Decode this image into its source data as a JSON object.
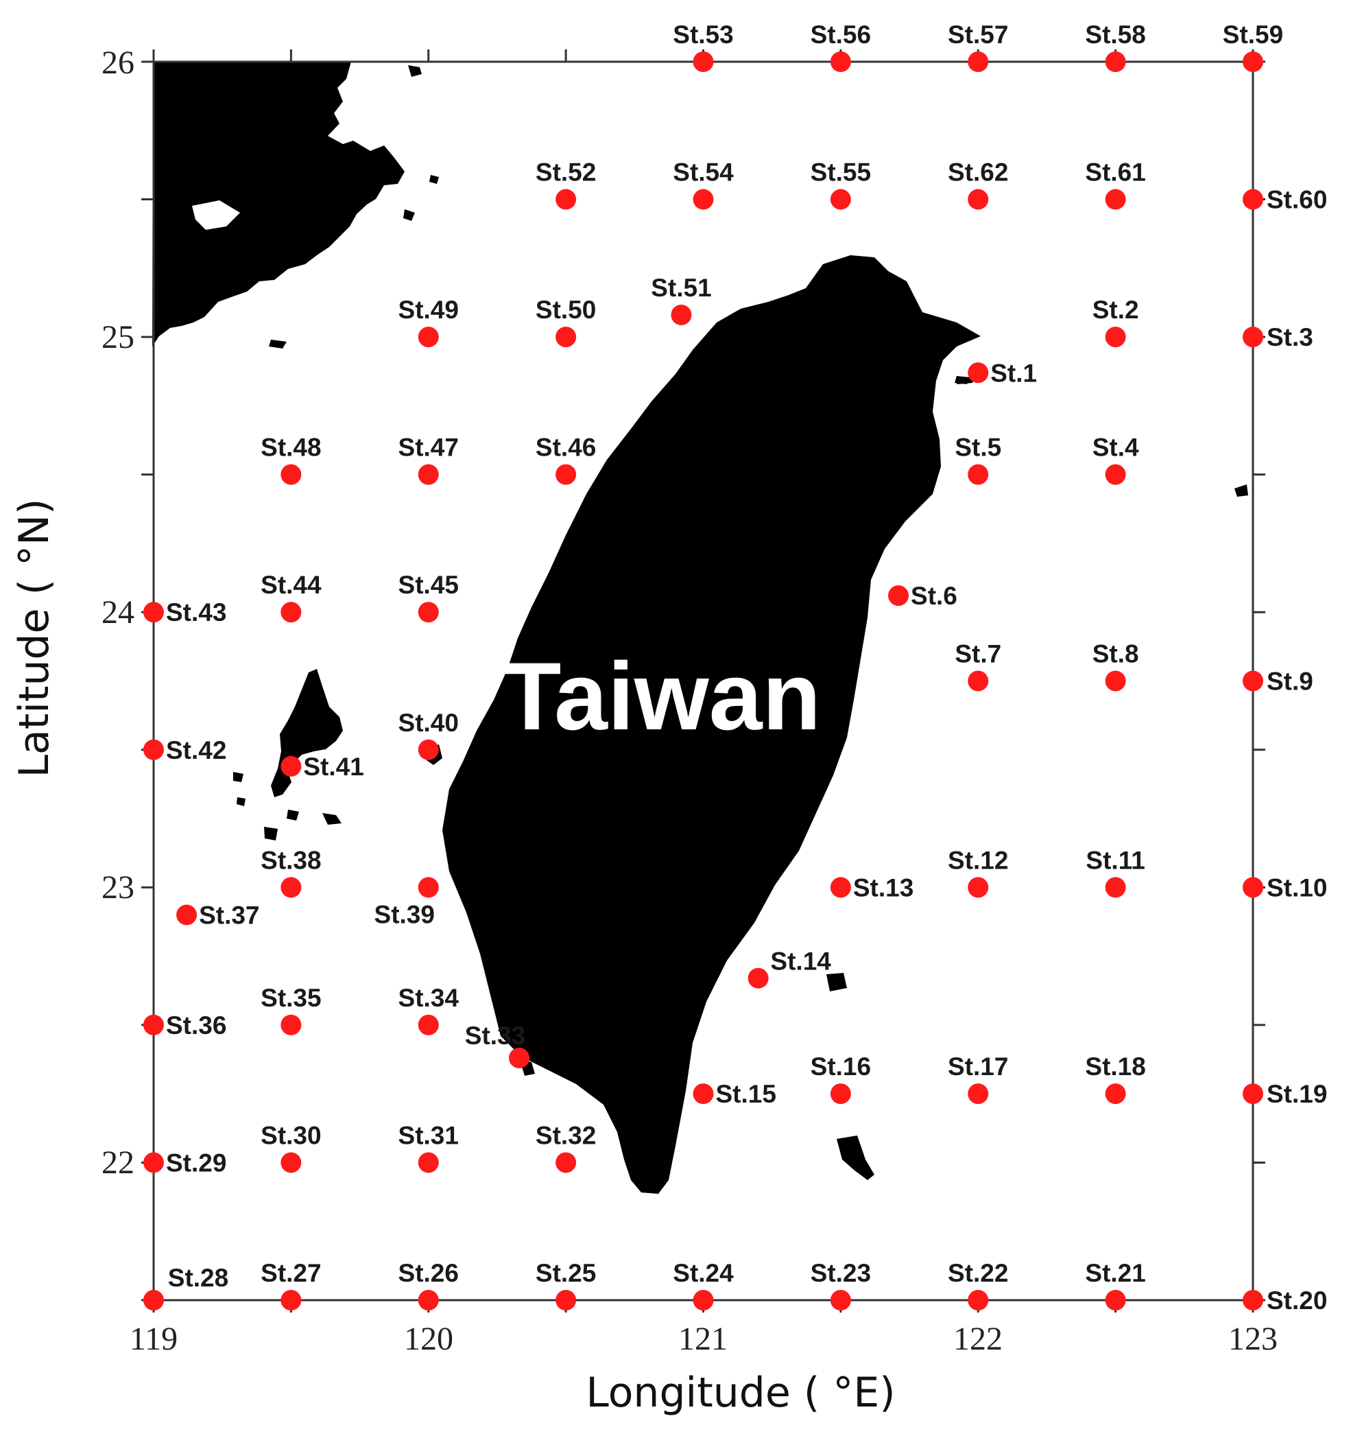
{
  "map": {
    "title_text": "Taiwan",
    "axes": {
      "x_label": "Longitude ( °E)",
      "y_label": "Latitude ( °N)",
      "x_ticks": [
        "119",
        "120",
        "121",
        "122",
        "123"
      ],
      "y_ticks": [
        "26",
        "25",
        "24",
        "23",
        "22"
      ],
      "lon_range": [
        119,
        123
      ],
      "lat_range": [
        21.5,
        26
      ]
    },
    "colors": {
      "land": "#000000",
      "station": "#ff1a1a",
      "frame": "#333333",
      "background": "#ffffff"
    },
    "stations": [
      {
        "label": "St.1",
        "lon": 122.0,
        "lat": 24.87
      },
      {
        "label": "St.2",
        "lon": 122.5,
        "lat": 25.0
      },
      {
        "label": "St.3",
        "lon": 123.0,
        "lat": 25.0
      },
      {
        "label": "St.4",
        "lon": 122.5,
        "lat": 24.5
      },
      {
        "label": "St.5",
        "lon": 122.0,
        "lat": 24.5
      },
      {
        "label": "St.6",
        "lon": 121.71,
        "lat": 24.06
      },
      {
        "label": "St.7",
        "lon": 122.0,
        "lat": 23.75
      },
      {
        "label": "St.8",
        "lon": 122.5,
        "lat": 23.75
      },
      {
        "label": "St.9",
        "lon": 123.0,
        "lat": 23.75
      },
      {
        "label": "St.10",
        "lon": 123.0,
        "lat": 23.0
      },
      {
        "label": "St.11",
        "lon": 122.5,
        "lat": 23.0
      },
      {
        "label": "St.12",
        "lon": 122.0,
        "lat": 23.0
      },
      {
        "label": "St.13",
        "lon": 121.5,
        "lat": 23.0
      },
      {
        "label": "St.14",
        "lon": 121.2,
        "lat": 22.67
      },
      {
        "label": "St.15",
        "lon": 121.0,
        "lat": 22.25
      },
      {
        "label": "St.16",
        "lon": 121.5,
        "lat": 22.25
      },
      {
        "label": "St.17",
        "lon": 122.0,
        "lat": 22.25
      },
      {
        "label": "St.18",
        "lon": 122.5,
        "lat": 22.25
      },
      {
        "label": "St.19",
        "lon": 123.0,
        "lat": 22.25
      },
      {
        "label": "St.20",
        "lon": 123.0,
        "lat": 21.5
      },
      {
        "label": "St.21",
        "lon": 122.5,
        "lat": 21.5
      },
      {
        "label": "St.22",
        "lon": 122.0,
        "lat": 21.5
      },
      {
        "label": "St.23",
        "lon": 121.5,
        "lat": 21.5
      },
      {
        "label": "St.24",
        "lon": 121.0,
        "lat": 21.5
      },
      {
        "label": "St.25",
        "lon": 120.5,
        "lat": 21.5
      },
      {
        "label": "St.26",
        "lon": 120.0,
        "lat": 21.5
      },
      {
        "label": "St.27",
        "lon": 119.5,
        "lat": 21.5
      },
      {
        "label": "St.28",
        "lon": 119.0,
        "lat": 21.5
      },
      {
        "label": "St.29",
        "lon": 119.0,
        "lat": 22.0
      },
      {
        "label": "St.30",
        "lon": 119.5,
        "lat": 22.0
      },
      {
        "label": "St.31",
        "lon": 120.0,
        "lat": 22.0
      },
      {
        "label": "St.32",
        "lon": 120.5,
        "lat": 22.0
      },
      {
        "label": "St.33",
        "lon": 120.33,
        "lat": 22.38
      },
      {
        "label": "St.34",
        "lon": 120.0,
        "lat": 22.5
      },
      {
        "label": "St.35",
        "lon": 119.5,
        "lat": 22.5
      },
      {
        "label": "St.36",
        "lon": 119.0,
        "lat": 22.5
      },
      {
        "label": "St.37",
        "lon": 119.12,
        "lat": 22.9
      },
      {
        "label": "St.38",
        "lon": 119.5,
        "lat": 23.0
      },
      {
        "label": "St.39",
        "lon": 120.0,
        "lat": 23.0
      },
      {
        "label": "St.40",
        "lon": 120.0,
        "lat": 23.5
      },
      {
        "label": "St.41",
        "lon": 119.5,
        "lat": 23.44
      },
      {
        "label": "St.42",
        "lon": 119.0,
        "lat": 23.5
      },
      {
        "label": "St.43",
        "lon": 119.0,
        "lat": 24.0
      },
      {
        "label": "St.44",
        "lon": 119.5,
        "lat": 24.0
      },
      {
        "label": "St.45",
        "lon": 120.0,
        "lat": 24.0
      },
      {
        "label": "St.46",
        "lon": 120.5,
        "lat": 24.5
      },
      {
        "label": "St.47",
        "lon": 120.0,
        "lat": 24.5
      },
      {
        "label": "St.48",
        "lon": 119.5,
        "lat": 24.5
      },
      {
        "label": "St.49",
        "lon": 120.0,
        "lat": 25.0
      },
      {
        "label": "St.50",
        "lon": 120.5,
        "lat": 25.0
      },
      {
        "label": "St.51",
        "lon": 120.92,
        "lat": 25.08
      },
      {
        "label": "St.52",
        "lon": 120.5,
        "lat": 25.5
      },
      {
        "label": "St.53",
        "lon": 121.0,
        "lat": 26.0
      },
      {
        "label": "St.54",
        "lon": 121.0,
        "lat": 25.5
      },
      {
        "label": "St.55",
        "lon": 121.5,
        "lat": 25.5
      },
      {
        "label": "St.56",
        "lon": 121.5,
        "lat": 26.0
      },
      {
        "label": "St.57",
        "lon": 122.0,
        "lat": 26.0
      },
      {
        "label": "St.58",
        "lon": 122.5,
        "lat": 26.0
      },
      {
        "label": "St.59",
        "lon": 123.0,
        "lat": 26.0
      },
      {
        "label": "St.60",
        "lon": 123.0,
        "lat": 25.5
      },
      {
        "label": "St.61",
        "lon": 122.5,
        "lat": 25.5
      },
      {
        "label": "St.62",
        "lon": 122.0,
        "lat": 25.5
      }
    ]
  }
}
